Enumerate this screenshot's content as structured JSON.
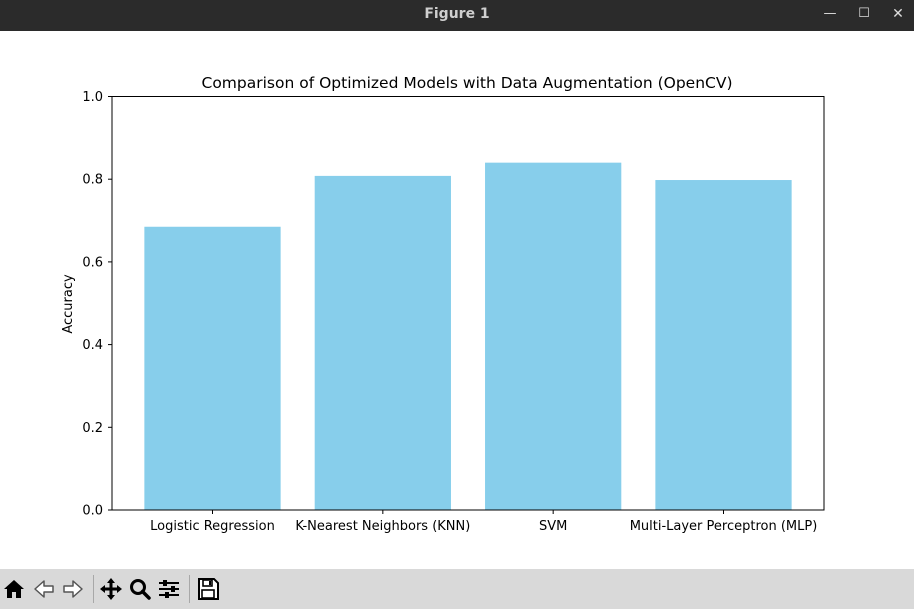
{
  "window": {
    "title": "Figure 1",
    "controls": {
      "minimize": "—",
      "maximize": "☐",
      "close": "✕"
    }
  },
  "toolbar": {
    "buttons": [
      "home-icon",
      "back-icon",
      "forward-icon",
      "pan-icon",
      "zoom-icon",
      "configure-subplots-icon",
      "save-icon"
    ]
  },
  "chart_data": {
    "type": "bar",
    "title": "Comparison of Optimized Models with Data Augmentation (OpenCV)",
    "xlabel": "",
    "ylabel": "Accuracy",
    "categories": [
      "Logistic Regression",
      "K-Nearest Neighbors (KNN)",
      "SVM",
      "Multi-Layer Perceptron (MLP)"
    ],
    "values": [
      0.685,
      0.808,
      0.84,
      0.798
    ],
    "ylim": [
      0,
      1.0
    ],
    "yticks": [
      "0.0",
      "0.2",
      "0.4",
      "0.6",
      "0.8",
      "1.0"
    ],
    "bar_color": "#87ceeb",
    "grid": false,
    "legend": "none"
  }
}
